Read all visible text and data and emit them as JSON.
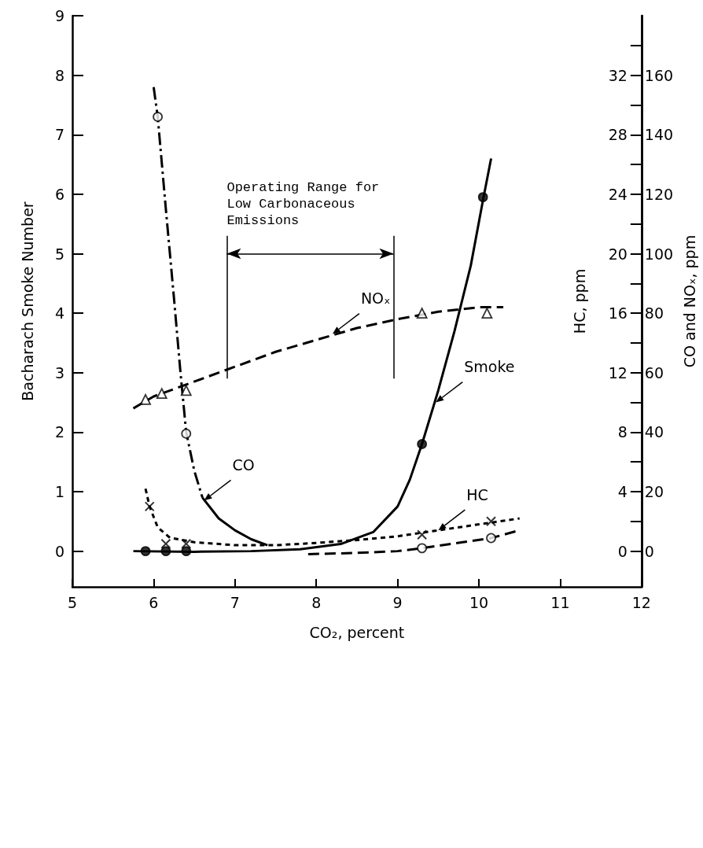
{
  "chart_data": {
    "type": "scatter",
    "xlabel": "CO₂, percent",
    "ylabel": "Bacharach Smoke Number",
    "y2label": "CO and NOₓ, ppm",
    "y3label": "HC, ppm",
    "xlim": [
      5,
      12
    ],
    "xticks": [
      5,
      6,
      7,
      8,
      9,
      10,
      11,
      12
    ],
    "ylim": [
      -0.6,
      9
    ],
    "yticks": [
      0,
      1,
      2,
      3,
      4,
      5,
      6,
      7,
      8,
      9
    ],
    "y2lim": [
      -12,
      180
    ],
    "y2ticks": [
      0,
      20,
      40,
      60,
      80,
      100,
      120,
      140,
      160
    ],
    "y3lim": [
      -2.4,
      36
    ],
    "y3ticks": [
      0,
      {
        "value": 2,
        "label": null
      },
      4,
      {
        "value": 6,
        "label": null
      },
      8,
      {
        "value": 10,
        "label": null
      },
      12,
      {
        "value": 14,
        "label": null
      },
      16,
      {
        "value": 18,
        "label": null
      },
      20,
      {
        "value": 22,
        "label": null
      },
      24,
      {
        "value": 26,
        "label": null
      },
      28,
      {
        "value": 30,
        "label": null
      },
      32,
      {
        "value": 34,
        "label": null
      }
    ],
    "grid": false,
    "series": [
      {
        "color": "#000000",
        "marker": "circle",
        "x": [
          5.9,
          6.15,
          6.4,
          9.3,
          10.05
        ],
        "values": [
          0,
          0,
          0,
          1.8,
          5.95
        ]
      },
      {
        "type": "line",
        "color": "#000000",
        "line_style": "solid",
        "x": [
          5.75,
          6.5,
          7.2,
          7.8,
          8.3,
          8.7,
          9.0,
          9.15,
          9.3,
          9.5,
          9.7,
          9.9,
          10.05,
          10.15
        ],
        "values": [
          0,
          -0.01,
          0,
          0.03,
          0.12,
          0.32,
          0.75,
          1.2,
          1.8,
          2.7,
          3.7,
          4.8,
          5.9,
          6.6
        ]
      },
      {
        "axis": "y2",
        "color": "#ffffff",
        "marker": "circle",
        "x": [
          6.05,
          6.4,
          9.3,
          10.15
        ],
        "values": [
          146,
          39.5,
          1,
          4.4
        ]
      },
      {
        "type": "line",
        "axis": "y2",
        "color": "#000000",
        "line_style": "dashdot",
        "x": [
          6.0,
          6.05,
          6.15,
          6.25,
          6.33,
          6.4,
          6.5,
          6.6
        ],
        "values": [
          156,
          146,
          115,
          85,
          60,
          40,
          27,
          18
        ]
      },
      {
        "type": "line",
        "axis": "y2",
        "color": "#000000",
        "line_style": "solid",
        "x": [
          6.6,
          6.8,
          7.0,
          7.2,
          7.4
        ],
        "values": [
          18,
          11,
          7,
          4,
          2
        ]
      },
      {
        "type": "line",
        "axis": "y2",
        "color": "#000000",
        "line_style": "dashed",
        "x": [
          7.9,
          8.5,
          9.0,
          9.3,
          9.8,
          10.15,
          10.5
        ],
        "values": [
          -1,
          -0.6,
          0,
          1,
          3,
          4.4,
          7
        ]
      },
      {
        "axis": "y3",
        "color": "#000000",
        "marker": "cross",
        "x": [
          5.95,
          6.15,
          6.4,
          9.3,
          10.15
        ],
        "values": [
          3.0,
          0.5,
          0.5,
          1.1,
          2.0
        ]
      },
      {
        "type": "line",
        "axis": "y3",
        "color": "#000000",
        "line_style": "dotted",
        "x": [
          5.9,
          5.95,
          6.05,
          6.2,
          6.5,
          7.0,
          7.5,
          8.0,
          8.5,
          9.0,
          9.5,
          10.0,
          10.5
        ],
        "values": [
          4.2,
          3.0,
          1.6,
          0.9,
          0.6,
          0.4,
          0.4,
          0.55,
          0.75,
          1.0,
          1.4,
          1.8,
          2.2
        ]
      },
      {
        "axis": "y2",
        "color": "#ffffff",
        "marker": "triangle",
        "x": [
          5.9,
          6.1,
          6.4,
          9.3,
          10.1
        ],
        "values": [
          51,
          53,
          54,
          80,
          80
        ]
      },
      {
        "type": "line",
        "axis": "y2",
        "color": "#000000",
        "line_style": "dashed",
        "x": [
          5.75,
          6.0,
          6.4,
          7.0,
          7.5,
          8.0,
          8.5,
          9.0,
          9.5,
          10.0,
          10.3
        ],
        "values": [
          48,
          52,
          56,
          62,
          67,
          71,
          75,
          78,
          80.5,
          82,
          82
        ]
      }
    ],
    "ref_lines": [
      {
        "axis": "x",
        "value": 6.9
      },
      {
        "axis": "x",
        "value": 8.95
      }
    ],
    "annotations": [
      "Operating Range for Low Carbonaceous Emissions",
      {
        "text": "NOₓ",
        "x": 8.2,
        "y": 3.65
      },
      {
        "text": "Smoke",
        "x": 9.47,
        "y": 2.5
      },
      {
        "text": "CO",
        "x": 6.62,
        "y": 0.85
      },
      {
        "text": "HC",
        "x": 9.5,
        "y": 0.35
      }
    ]
  }
}
